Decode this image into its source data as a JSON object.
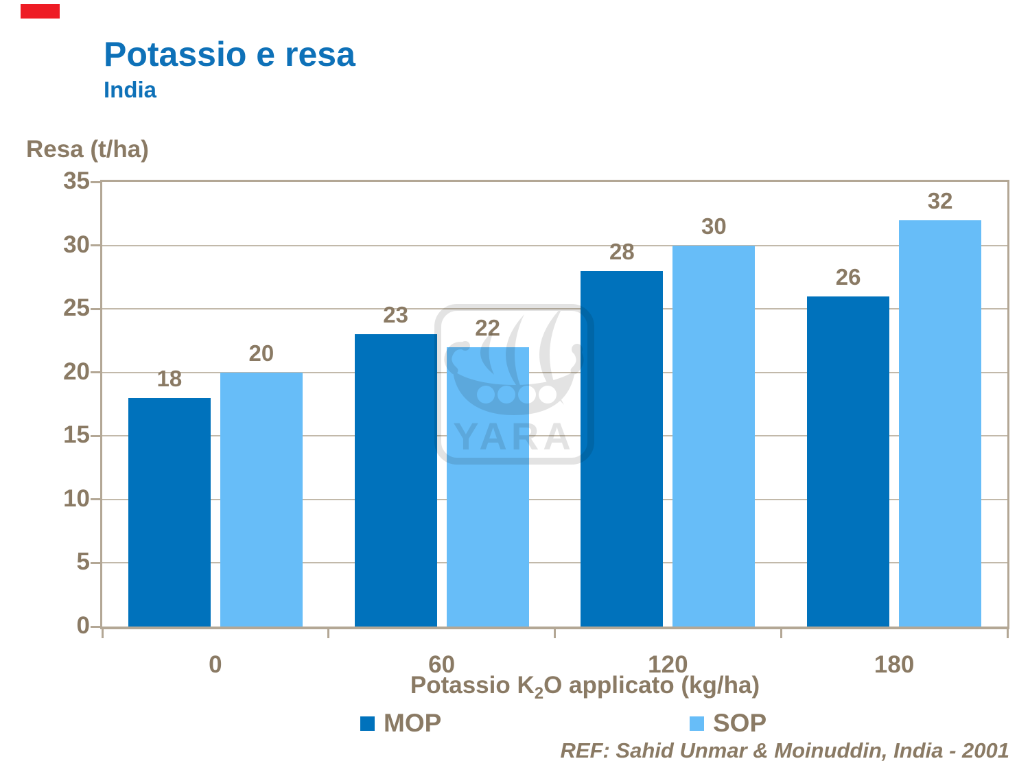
{
  "header": {
    "title": "Potassio e resa",
    "subtitle": "India"
  },
  "chart_data": {
    "type": "bar",
    "title": "Potassio e resa",
    "subtitle": "India",
    "categories": [
      "0",
      "60",
      "120",
      "180"
    ],
    "series": [
      {
        "name": "MOP",
        "color": "#0072bc",
        "values": [
          18,
          23,
          28,
          26
        ]
      },
      {
        "name": "SOP",
        "color": "#67bdf8",
        "values": [
          20,
          22,
          30,
          32
        ]
      }
    ],
    "xlabel": "Potassio K₂O applicato (kg/ha)",
    "xlabel_parts": {
      "pre": "Potassio K",
      "sub": "2",
      "post": "O applicato (kg/ha)"
    },
    "ylabel": "Resa (t/ha)",
    "ylim": [
      0,
      35
    ],
    "ytick_step": 5,
    "yticks": [
      0,
      5,
      10,
      15,
      20,
      25,
      30,
      35
    ],
    "grid": true,
    "value_labels_shown": true,
    "legend_position": "bottom"
  },
  "legend": {
    "items": [
      {
        "label": "MOP",
        "color": "#0072bc"
      },
      {
        "label": "SOP",
        "color": "#67bdf8"
      }
    ]
  },
  "watermark": {
    "label": "YARA"
  },
  "footer": {
    "reference": "REF: Sahid Unmar & Moinuddin, India - 2001"
  },
  "colors": {
    "title_blue": "#0e71b8",
    "text_brown": "#8a7a64",
    "axis_tan": "#b3a795",
    "mop_bar": "#0072bc",
    "sop_bar": "#67bdf8",
    "red_mark": "#ee1c25",
    "watermark_gray": "#e3e3e3"
  }
}
